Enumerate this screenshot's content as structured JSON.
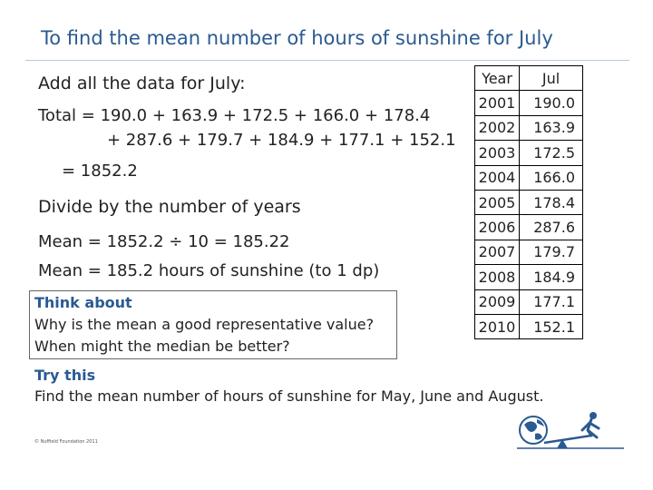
{
  "title": "To find the mean number of hours of sunshine for July",
  "steps": {
    "intro": "Add all the data for July:",
    "total_line1": "Total = 190.0 + 163.9 + 172.5 + 166.0 + 178.4",
    "total_line2": "+ 287.6 + 179.7 + 184.9 + 177.1 + 152.1",
    "total_result": "= 1852.2",
    "divide": "Divide by the number of years",
    "mean_calc": "Mean = 1852.2 ÷ 10 = 185.22",
    "mean_result": "Mean = 185.2 hours of sunshine (to 1 dp)"
  },
  "think_about": {
    "heading": "Think about",
    "q1": "Why is the mean a good representative value?",
    "q2": "When might the median be better?"
  },
  "try_this": {
    "heading": "Try this",
    "text": "Find the mean number of hours of sunshine for May, June and August."
  },
  "table": {
    "headers": [
      "Year",
      "Jul"
    ],
    "rows": [
      [
        "2001",
        "190.0"
      ],
      [
        "2002",
        "163.9"
      ],
      [
        "2003",
        "172.5"
      ],
      [
        "2004",
        "166.0"
      ],
      [
        "2005",
        "178.4"
      ],
      [
        "2006",
        "287.6"
      ],
      [
        "2007",
        "179.7"
      ],
      [
        "2008",
        "184.9"
      ],
      [
        "2009",
        "177.1"
      ],
      [
        "2010",
        "152.1"
      ]
    ]
  },
  "footer": {
    "copyright": "© Nuffield Foundation 2011"
  },
  "colors": {
    "accent": "#2a5a92",
    "rule": "#b9c7d8"
  }
}
